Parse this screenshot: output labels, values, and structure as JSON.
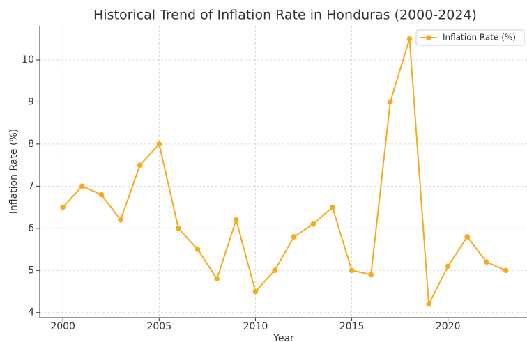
{
  "chart_data": {
    "type": "line",
    "title": "Historical Trend of Inflation Rate in Honduras (2000-2024)",
    "xlabel": "Year",
    "ylabel": "Inflation Rate (%)",
    "x": [
      2000,
      2001,
      2002,
      2003,
      2004,
      2005,
      2006,
      2007,
      2008,
      2009,
      2010,
      2011,
      2012,
      2013,
      2014,
      2015,
      2016,
      2017,
      2018,
      2019,
      2020,
      2021,
      2022,
      2023
    ],
    "series": [
      {
        "name": "Inflation Rate (%)",
        "color": "#f5ab1b",
        "values": [
          6.5,
          7.0,
          6.8,
          6.2,
          7.5,
          8.0,
          6.0,
          5.5,
          4.8,
          6.2,
          4.5,
          5.0,
          5.8,
          6.1,
          6.5,
          5.0,
          4.9,
          9.0,
          10.5,
          4.2,
          5.1,
          5.8,
          5.2,
          5.0
        ]
      }
    ],
    "xlim": [
      1998.8,
      2024.1
    ],
    "xticks": [
      2000,
      2005,
      2010,
      2015,
      2020
    ],
    "ylim": [
      3.88,
      10.81
    ],
    "yticks": [
      4,
      5,
      6,
      7,
      8,
      9,
      10
    ],
    "grid": true,
    "legend": "upper right"
  }
}
